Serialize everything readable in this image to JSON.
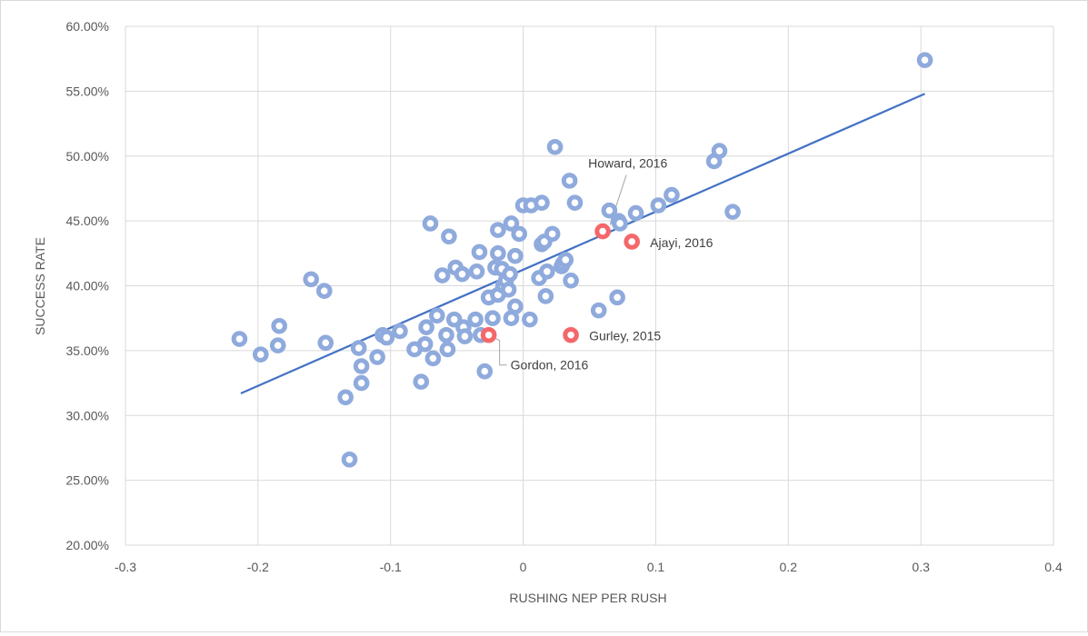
{
  "chart_data": {
    "type": "scatter",
    "title": "",
    "xlabel": "RUSHING NEP PER RUSH",
    "ylabel": "SUCCESS RATE",
    "xlim": [
      -0.3,
      0.4
    ],
    "ylim": [
      0.2,
      0.6
    ],
    "x_ticks": [
      -0.3,
      -0.2,
      -0.1,
      0,
      0.1,
      0.2,
      0.3,
      0.4
    ],
    "x_tick_labels": [
      "-0.3",
      "-0.2",
      "-0.1",
      "0",
      "0.1",
      "0.2",
      "0.3",
      "0.4"
    ],
    "y_ticks": [
      0.2,
      0.25,
      0.3,
      0.35,
      0.4,
      0.45,
      0.5,
      0.55,
      0.6
    ],
    "y_tick_labels": [
      "20.00%",
      "25.00%",
      "30.00%",
      "35.00%",
      "40.00%",
      "45.00%",
      "50.00%",
      "55.00%",
      "60.00%"
    ],
    "grid": "vertical and horizontal",
    "legend": "none",
    "colors": {
      "points": "#8faadc",
      "highlight": "#f4676a",
      "trendline": "#4472c4",
      "grid": "#d9d9d9"
    },
    "trendline": {
      "x": [
        -0.213,
        0.303
      ],
      "y": [
        0.317,
        0.548
      ]
    },
    "series": [
      {
        "points": [
          [
            0.303,
            0.574
          ],
          [
            0.024,
            0.507
          ],
          [
            0.148,
            0.504
          ],
          [
            0.144,
            0.496
          ],
          [
            0.035,
            0.481
          ],
          [
            -0.214,
            0.359
          ],
          [
            -0.198,
            0.347
          ],
          [
            -0.185,
            0.354
          ],
          [
            -0.184,
            0.369
          ],
          [
            -0.16,
            0.405
          ],
          [
            -0.15,
            0.396
          ],
          [
            -0.149,
            0.356
          ],
          [
            -0.134,
            0.314
          ],
          [
            -0.131,
            0.266
          ],
          [
            -0.124,
            0.352
          ],
          [
            -0.122,
            0.338
          ],
          [
            -0.122,
            0.325
          ],
          [
            -0.11,
            0.345
          ],
          [
            -0.106,
            0.362
          ],
          [
            -0.103,
            0.36
          ],
          [
            -0.093,
            0.365
          ],
          [
            -0.082,
            0.351
          ],
          [
            -0.077,
            0.326
          ],
          [
            -0.074,
            0.355
          ],
          [
            -0.073,
            0.368
          ],
          [
            -0.07,
            0.448
          ],
          [
            -0.068,
            0.344
          ],
          [
            -0.065,
            0.377
          ],
          [
            -0.061,
            0.408
          ],
          [
            -0.058,
            0.362
          ],
          [
            -0.057,
            0.351
          ],
          [
            -0.056,
            0.438
          ],
          [
            -0.052,
            0.374
          ],
          [
            -0.051,
            0.414
          ],
          [
            -0.046,
            0.409
          ],
          [
            -0.045,
            0.368
          ],
          [
            -0.044,
            0.361
          ],
          [
            -0.036,
            0.374
          ],
          [
            -0.035,
            0.411
          ],
          [
            -0.033,
            0.426
          ],
          [
            -0.032,
            0.362
          ],
          [
            -0.029,
            0.334
          ],
          [
            -0.026,
            0.391
          ],
          [
            -0.023,
            0.375
          ],
          [
            -0.021,
            0.414
          ],
          [
            -0.019,
            0.425
          ],
          [
            -0.019,
            0.443
          ],
          [
            -0.019,
            0.393
          ],
          [
            -0.016,
            0.413
          ],
          [
            -0.015,
            0.4
          ],
          [
            -0.013,
            0.404
          ],
          [
            -0.011,
            0.397
          ],
          [
            -0.01,
            0.409
          ],
          [
            -0.009,
            0.375
          ],
          [
            -0.009,
            0.448
          ],
          [
            -0.006,
            0.384
          ],
          [
            -0.006,
            0.423
          ],
          [
            -0.003,
            0.44
          ],
          [
            0.0,
            0.462
          ],
          [
            0.005,
            0.374
          ],
          [
            0.006,
            0.462
          ],
          [
            0.012,
            0.406
          ],
          [
            0.014,
            0.432
          ],
          [
            0.014,
            0.464
          ],
          [
            0.016,
            0.434
          ],
          [
            0.017,
            0.392
          ],
          [
            0.018,
            0.411
          ],
          [
            0.022,
            0.44
          ],
          [
            0.029,
            0.415
          ],
          [
            0.03,
            0.417
          ],
          [
            0.032,
            0.42
          ],
          [
            0.036,
            0.404
          ],
          [
            0.039,
            0.464
          ],
          [
            0.057,
            0.381
          ],
          [
            0.065,
            0.458
          ],
          [
            0.071,
            0.391
          ],
          [
            0.072,
            0.45
          ],
          [
            0.073,
            0.448
          ],
          [
            0.085,
            0.456
          ],
          [
            0.102,
            0.462
          ],
          [
            0.112,
            0.47
          ],
          [
            0.158,
            0.457
          ]
        ]
      },
      {
        "points": [
          [
            -0.026,
            0.362
          ],
          [
            0.06,
            0.442
          ],
          [
            0.082,
            0.434
          ],
          [
            0.036,
            0.362
          ]
        ],
        "point_labels": [
          "Gordon, 2016",
          "Howard, 2016",
          "Ajayi, 2016",
          "Gurley, 2015"
        ]
      }
    ]
  }
}
